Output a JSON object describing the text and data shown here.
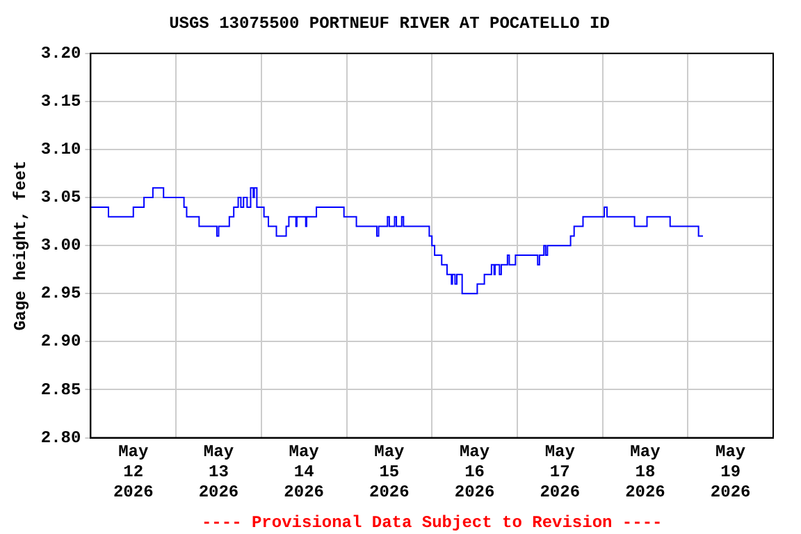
{
  "chart_data": {
    "type": "step",
    "title": "USGS 13075500 PORTNEUF RIVER AT POCATELLO ID",
    "ylabel": "Gage height, feet",
    "annotations": [
      "---- Provisional Data Subject to Revision ----"
    ],
    "x": [
      "2026-05-12T00:00",
      "2026-05-12T05:00",
      "2026-05-12T12:00",
      "2026-05-12T15:00",
      "2026-05-12T17:30",
      "2026-05-12T20:30",
      "2026-05-13T02:15",
      "2026-05-13T03:00",
      "2026-05-13T06:30",
      "2026-05-13T11:30",
      "2026-05-13T12:00",
      "2026-05-13T15:00",
      "2026-05-13T16:15",
      "2026-05-13T17:30",
      "2026-05-13T18:15",
      "2026-05-13T19:00",
      "2026-05-13T20:00",
      "2026-05-13T21:00",
      "2026-05-13T21:45",
      "2026-05-13T22:00",
      "2026-05-13T22:45",
      "2026-05-14T00:45",
      "2026-05-14T02:00",
      "2026-05-14T04:15",
      "2026-05-14T07:00",
      "2026-05-14T07:45",
      "2026-05-14T09:45",
      "2026-05-14T10:00",
      "2026-05-14T12:30",
      "2026-05-14T12:45",
      "2026-05-14T15:30",
      "2026-05-14T23:15",
      "2026-05-15T02:45",
      "2026-05-15T08:30",
      "2026-05-15T09:00",
      "2026-05-15T11:30",
      "2026-05-15T12:00",
      "2026-05-15T13:30",
      "2026-05-15T14:00",
      "2026-05-15T15:30",
      "2026-05-15T16:00",
      "2026-05-15T23:15",
      "2026-05-16T00:00",
      "2026-05-16T00:45",
      "2026-05-16T02:45",
      "2026-05-16T04:15",
      "2026-05-16T05:30",
      "2026-05-16T05:45",
      "2026-05-16T06:30",
      "2026-05-16T07:00",
      "2026-05-16T08:30",
      "2026-05-16T12:45",
      "2026-05-16T14:45",
      "2026-05-16T16:45",
      "2026-05-16T17:30",
      "2026-05-16T17:45",
      "2026-05-16T19:00",
      "2026-05-16T19:30",
      "2026-05-16T21:15",
      "2026-05-16T21:45",
      "2026-05-16T23:30",
      "2026-05-17T05:45",
      "2026-05-17T06:15",
      "2026-05-17T07:30",
      "2026-05-17T08:00",
      "2026-05-17T08:30",
      "2026-05-17T15:00",
      "2026-05-17T16:00",
      "2026-05-17T18:30",
      "2026-05-18T00:30",
      "2026-05-18T01:15",
      "2026-05-18T09:00",
      "2026-05-18T12:30",
      "2026-05-18T19:00",
      "2026-05-19T03:00",
      "2026-05-19T04:15"
    ],
    "series": [
      {
        "color": "#0000ff",
        "values": [
          3.04,
          3.03,
          3.04,
          3.05,
          3.06,
          3.05,
          3.04,
          3.03,
          3.02,
          3.01,
          3.02,
          3.03,
          3.04,
          3.05,
          3.04,
          3.05,
          3.04,
          3.06,
          3.05,
          3.06,
          3.04,
          3.03,
          3.02,
          3.01,
          3.02,
          3.03,
          3.02,
          3.03,
          3.02,
          3.03,
          3.04,
          3.03,
          3.02,
          3.01,
          3.02,
          3.03,
          3.02,
          3.03,
          3.02,
          3.03,
          3.02,
          3.01,
          3.0,
          2.99,
          2.98,
          2.97,
          2.96,
          2.97,
          2.96,
          2.97,
          2.95,
          2.96,
          2.97,
          2.98,
          2.97,
          2.98,
          2.97,
          2.98,
          2.99,
          2.98,
          2.99,
          2.98,
          2.99,
          3.0,
          2.99,
          3.0,
          3.01,
          3.02,
          3.03,
          3.04,
          3.03,
          3.02,
          3.03,
          3.02,
          3.01,
          3.01
        ]
      }
    ],
    "xlim": [
      "2026-05-12T00:00",
      "2026-05-20T00:00"
    ],
    "xticks": [
      {
        "value": "2026-05-12T00:00",
        "label": null
      },
      {
        "value": "2026-05-12T12:00",
        "label": "May\n12\n2026"
      },
      {
        "value": "2026-05-13T00:00",
        "label": null
      },
      {
        "value": "2026-05-13T12:00",
        "label": "May\n13\n2026"
      },
      {
        "value": "2026-05-14T00:00",
        "label": null
      },
      {
        "value": "2026-05-14T12:00",
        "label": "May\n14\n2026"
      },
      {
        "value": "2026-05-15T00:00",
        "label": null
      },
      {
        "value": "2026-05-15T12:00",
        "label": "May\n15\n2026"
      },
      {
        "value": "2026-05-16T00:00",
        "label": null
      },
      {
        "value": "2026-05-16T12:00",
        "label": "May\n16\n2026"
      },
      {
        "value": "2026-05-17T00:00",
        "label": null
      },
      {
        "value": "2026-05-17T12:00",
        "label": "May\n17\n2026"
      },
      {
        "value": "2026-05-18T00:00",
        "label": null
      },
      {
        "value": "2026-05-18T12:00",
        "label": "May\n18\n2026"
      },
      {
        "value": "2026-05-19T00:00",
        "label": null
      },
      {
        "value": "2026-05-19T12:00",
        "label": "May\n19\n2026"
      },
      {
        "value": "2026-05-20T00:00",
        "label": null
      }
    ],
    "ylim": [
      2.8,
      3.2
    ],
    "yticks": [
      {
        "value": 2.8,
        "label": "2.80"
      },
      {
        "value": 2.85,
        "label": "2.85"
      },
      {
        "value": 2.9,
        "label": "2.90"
      },
      {
        "value": 2.95,
        "label": "2.95"
      },
      {
        "value": 3.0,
        "label": "3.00"
      },
      {
        "value": 3.05,
        "label": "3.05"
      },
      {
        "value": 3.1,
        "label": "3.10"
      },
      {
        "value": 3.15,
        "label": "3.15"
      },
      {
        "value": 3.2,
        "label": "3.20"
      }
    ],
    "grid": true,
    "legend": false
  }
}
